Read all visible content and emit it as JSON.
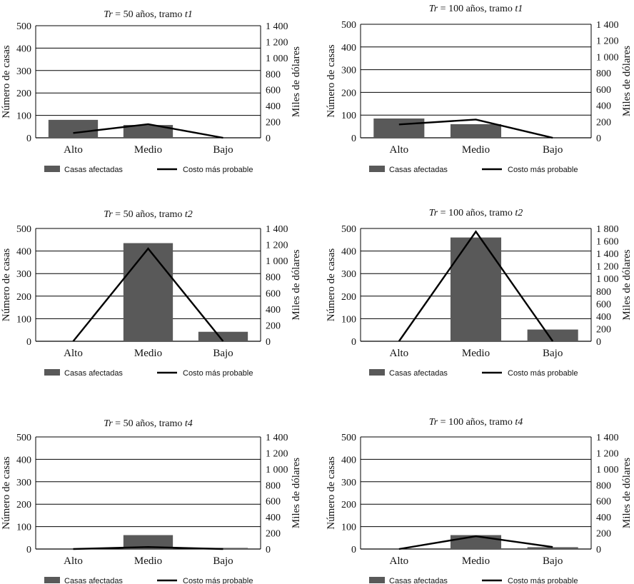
{
  "colors": {
    "bar": "#595959",
    "line": "#000000",
    "grid": "#000000"
  },
  "chart_data": [
    {
      "type": "bar",
      "title_prefix": "Tr",
      "title_middle": " = 50 años, tramo ",
      "title_suffix": "t1",
      "ylabel": "Número de casas",
      "y2label": "Miles de dólares",
      "categories": [
        "Alto",
        "Medio",
        "Bajo"
      ],
      "ylim": [
        0,
        500
      ],
      "yticks": [
        "0",
        "100",
        "200",
        "300",
        "400",
        "500"
      ],
      "y2lim": [
        0,
        1400
      ],
      "y2ticks": [
        "0",
        "200",
        "400",
        "600",
        "800",
        "1 000",
        "1 200",
        "1 400"
      ],
      "series": [
        {
          "name": "Casas afectadas",
          "type": "bar",
          "axis": "left",
          "values": [
            80,
            57,
            0
          ]
        },
        {
          "name": "Costo más probable",
          "type": "line",
          "axis": "right",
          "values": [
            60,
            170,
            0
          ]
        }
      ]
    },
    {
      "type": "bar",
      "title_prefix": "Tr",
      "title_middle": " = 100 años, tramo ",
      "title_suffix": "t1",
      "ylabel": "Número de casas",
      "y2label": "Miles de dólares",
      "categories": [
        "Alto",
        "Medio",
        "Bajo"
      ],
      "ylim": [
        0,
        500
      ],
      "yticks": [
        "0",
        "100",
        "200",
        "300",
        "400",
        "500"
      ],
      "y2lim": [
        0,
        1400
      ],
      "y2ticks": [
        "0",
        "200",
        "400",
        "600",
        "800",
        "1 000",
        "1 200",
        "1 400"
      ],
      "series": [
        {
          "name": "Casas afectadas",
          "type": "bar",
          "axis": "left",
          "values": [
            85,
            60,
            0
          ]
        },
        {
          "name": "Costo más probable",
          "type": "line",
          "axis": "right",
          "values": [
            165,
            225,
            0
          ]
        }
      ]
    },
    {
      "type": "bar",
      "title_prefix": "Tr",
      "title_middle": " = 50 años, tramo ",
      "title_suffix": "t2",
      "ylabel": "Número de casas",
      "y2label": "Miles de dólares",
      "categories": [
        "Alto",
        "Medio",
        "Bajo"
      ],
      "ylim": [
        0,
        500
      ],
      "yticks": [
        "0",
        "100",
        "200",
        "300",
        "400",
        "500"
      ],
      "y2lim": [
        0,
        1400
      ],
      "y2ticks": [
        "0",
        "200",
        "400",
        "600",
        "800",
        "1 000",
        "1 200",
        "1 400"
      ],
      "series": [
        {
          "name": "Casas afectadas",
          "type": "bar",
          "axis": "left",
          "values": [
            0,
            435,
            42
          ]
        },
        {
          "name": "Costo más probable",
          "type": "line",
          "axis": "right",
          "values": [
            0,
            1150,
            0
          ]
        }
      ]
    },
    {
      "type": "bar",
      "title_prefix": "Tr",
      "title_middle": " = 100 años, tramo ",
      "title_suffix": "t2",
      "ylabel": "Número de casas",
      "y2label": "Miles de dólares",
      "categories": [
        "Alto",
        "Medio",
        "Bajo"
      ],
      "ylim": [
        0,
        500
      ],
      "yticks": [
        "0",
        "100",
        "200",
        "300",
        "400",
        "500"
      ],
      "y2lim": [
        0,
        1800
      ],
      "y2ticks": [
        "0",
        "200",
        "400",
        "600",
        "800",
        "1 000",
        "1 200",
        "1 400",
        "1 600",
        "1 800"
      ],
      "series": [
        {
          "name": "Casas afectadas",
          "type": "bar",
          "axis": "left",
          "values": [
            0,
            460,
            52
          ]
        },
        {
          "name": "Costo más probable",
          "type": "line",
          "axis": "right",
          "values": [
            0,
            1750,
            0
          ]
        }
      ]
    },
    {
      "type": "bar",
      "title_prefix": "Tr",
      "title_middle": " = 50 años, tramo ",
      "title_suffix": "t4",
      "ylabel": "Número de casas",
      "y2label": "Miles de dólares",
      "categories": [
        "Alto",
        "Medio",
        "Bajo"
      ],
      "ylim": [
        0,
        500
      ],
      "yticks": [
        "0",
        "100",
        "200",
        "300",
        "400",
        "500"
      ],
      "y2lim": [
        0,
        1400
      ],
      "y2ticks": [
        "0",
        "200",
        "400",
        "600",
        "800",
        "1 000",
        "1 200",
        "1 400"
      ],
      "series": [
        {
          "name": "Casas afectadas",
          "type": "bar",
          "axis": "left",
          "values": [
            0,
            62,
            5
          ]
        },
        {
          "name": "Costo más probable",
          "type": "line",
          "axis": "right",
          "values": [
            0,
            25,
            0
          ]
        }
      ]
    },
    {
      "type": "bar",
      "title_prefix": "Tr",
      "title_middle": " = 100 años, tramo ",
      "title_suffix": "t4",
      "ylabel": "Número de casas",
      "y2label": "Miles de dólares",
      "categories": [
        "Alto",
        "Medio",
        "Bajo"
      ],
      "ylim": [
        0,
        500
      ],
      "yticks": [
        "0",
        "100",
        "200",
        "300",
        "400",
        "500"
      ],
      "y2lim": [
        0,
        1400
      ],
      "y2ticks": [
        "0",
        "200",
        "400",
        "600",
        "800",
        "1 000",
        "1 200",
        "1 400"
      ],
      "series": [
        {
          "name": "Casas afectadas",
          "type": "bar",
          "axis": "left",
          "values": [
            0,
            62,
            8
          ]
        },
        {
          "name": "Costo más probable",
          "type": "line",
          "axis": "right",
          "values": [
            0,
            160,
            25
          ]
        }
      ]
    }
  ]
}
